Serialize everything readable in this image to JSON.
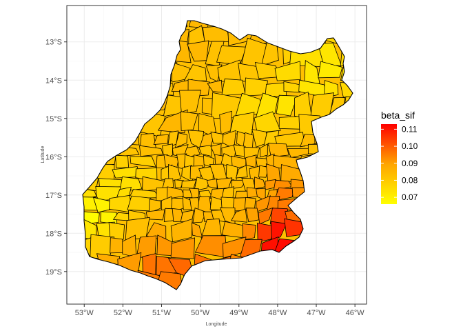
{
  "chart_data": {
    "type": "choropleth",
    "xlabel": "Longitude",
    "ylabel": "Latitude",
    "x_ticks": [
      "53°W",
      "52°W",
      "51°W",
      "50°W",
      "49°W",
      "48°W",
      "47°W",
      "46°W"
    ],
    "x_tick_values": [
      -53,
      -52,
      -51,
      -50,
      -49,
      -48,
      -47,
      -46
    ],
    "y_ticks": [
      "13°S",
      "14°S",
      "15°S",
      "16°S",
      "17°S",
      "18°S",
      "19°S"
    ],
    "y_tick_values": [
      -13,
      -14,
      -15,
      -16,
      -17,
      -18,
      -19
    ],
    "xlim": [
      -53.45,
      -45.7
    ],
    "ylim": [
      -19.85,
      -12.05
    ],
    "grid": true,
    "fill_variable": "beta_sif",
    "legend": {
      "title": "beta_sif",
      "placement": "right",
      "breaks": [
        0.07,
        0.08,
        0.09,
        0.1,
        0.11
      ],
      "labels": [
        "0.07",
        "0.08",
        "0.09",
        "0.10",
        "0.11"
      ],
      "range": [
        0.066,
        0.113
      ],
      "colors": [
        "#ffff00",
        "#ffa500",
        "#ff0000"
      ]
    },
    "border_color": "#000000",
    "background": "#ffffff",
    "panel_border": "#333333",
    "gridline_color": "#ebebeb"
  }
}
